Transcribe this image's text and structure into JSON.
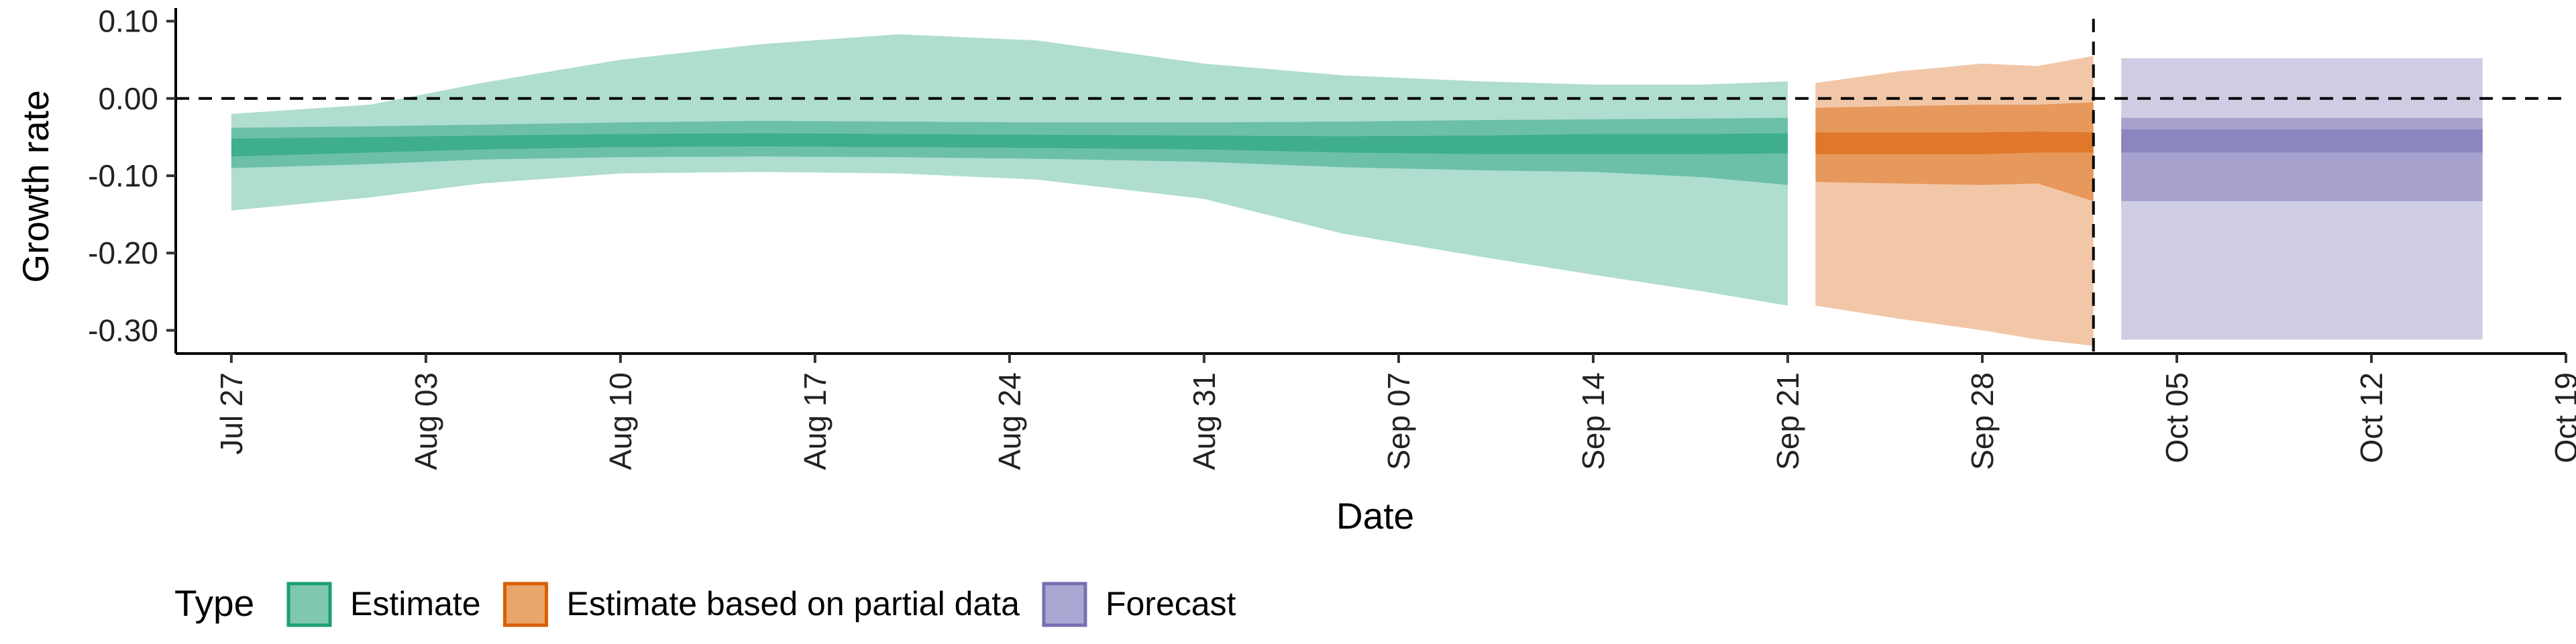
{
  "chart_data": {
    "type": "area",
    "title": "",
    "xlabel": "Date",
    "ylabel": "Growth rate",
    "x_start": "Jul 25",
    "x_end": "Oct 19",
    "xlim": [
      "Jul 25",
      "Oct 19"
    ],
    "ylim": [
      -0.33,
      0.11
    ],
    "x_ticks": [
      "Jul 27",
      "Aug 03",
      "Aug 10",
      "Aug 17",
      "Aug 24",
      "Aug 31",
      "Sep 07",
      "Sep 14",
      "Sep 21",
      "Sep 28",
      "Oct 05",
      "Oct 12",
      "Oct 19"
    ],
    "y_ticks": [
      0.1,
      0.0,
      -0.1,
      -0.2,
      -0.3
    ],
    "y_tick_labels": [
      "0.10",
      "0.00",
      "-0.10",
      "-0.20",
      "-0.30"
    ],
    "hline": 0.0,
    "vline": "Oct 02",
    "legend": {
      "title": "Type",
      "position": "bottom",
      "entries": [
        {
          "label": "Estimate",
          "fill": "#7fc8ae",
          "stroke": "#1b9e77"
        },
        {
          "label": "Estimate based on partial data",
          "fill": "#e9a56a",
          "stroke": "#d95f02"
        },
        {
          "label": "Forecast",
          "fill": "#aaa8d2",
          "stroke": "#7570b3"
        }
      ]
    },
    "series": [
      {
        "name": "Estimate",
        "color": "#1b9e77",
        "x": [
          "Jul 27",
          "Aug 01",
          "Aug 05",
          "Aug 10",
          "Aug 15",
          "Aug 20",
          "Aug 25",
          "Aug 31",
          "Sep 05",
          "Sep 10",
          "Sep 14",
          "Sep 18",
          "Sep 21"
        ],
        "median": [
          -0.064,
          -0.06,
          -0.057,
          -0.055,
          -0.054,
          -0.055,
          -0.056,
          -0.057,
          -0.059,
          -0.06,
          -0.059,
          -0.059,
          -0.058
        ],
        "inner_lower": [
          -0.075,
          -0.07,
          -0.066,
          -0.063,
          -0.062,
          -0.063,
          -0.064,
          -0.066,
          -0.07,
          -0.072,
          -0.072,
          -0.072,
          -0.071
        ],
        "inner_upper": [
          -0.052,
          -0.05,
          -0.048,
          -0.046,
          -0.045,
          -0.046,
          -0.047,
          -0.048,
          -0.049,
          -0.048,
          -0.046,
          -0.046,
          -0.045
        ],
        "mid_lower": [
          -0.09,
          -0.085,
          -0.079,
          -0.076,
          -0.075,
          -0.076,
          -0.078,
          -0.082,
          -0.089,
          -0.093,
          -0.095,
          -0.102,
          -0.112
        ],
        "mid_upper": [
          -0.038,
          -0.036,
          -0.034,
          -0.031,
          -0.029,
          -0.03,
          -0.031,
          -0.031,
          -0.03,
          -0.028,
          -0.027,
          -0.026,
          -0.025
        ],
        "outer_lower": [
          -0.145,
          -0.128,
          -0.11,
          -0.097,
          -0.095,
          -0.097,
          -0.105,
          -0.13,
          -0.175,
          -0.205,
          -0.228,
          -0.25,
          -0.268
        ],
        "outer_upper": [
          -0.02,
          -0.008,
          0.02,
          0.05,
          0.07,
          0.083,
          0.075,
          0.045,
          0.03,
          0.022,
          0.018,
          0.018,
          0.022
        ]
      },
      {
        "name": "Estimate based on partial data",
        "color": "#d95f02",
        "x": [
          "Sep 22",
          "Sep 25",
          "Sep 28",
          "Sep 30",
          "Oct 02"
        ],
        "median": [
          -0.058,
          -0.058,
          -0.058,
          -0.057,
          -0.058
        ],
        "inner_lower": [
          -0.072,
          -0.072,
          -0.072,
          -0.07,
          -0.07
        ],
        "inner_upper": [
          -0.044,
          -0.044,
          -0.044,
          -0.043,
          -0.044
        ],
        "mid_lower": [
          -0.108,
          -0.11,
          -0.112,
          -0.11,
          -0.133
        ],
        "mid_upper": [
          -0.012,
          -0.01,
          -0.008,
          -0.008,
          -0.005
        ],
        "outer_lower": [
          -0.268,
          -0.285,
          -0.3,
          -0.312,
          -0.32
        ],
        "outer_upper": [
          0.02,
          0.035,
          0.045,
          0.042,
          0.055
        ]
      },
      {
        "name": "Forecast",
        "color": "#7570b3",
        "x": [
          "Oct 03",
          "Oct 16"
        ],
        "median": [
          -0.055,
          -0.055
        ],
        "inner_lower": [
          -0.07,
          -0.07
        ],
        "inner_upper": [
          -0.04,
          -0.04
        ],
        "mid_lower": [
          -0.133,
          -0.133
        ],
        "mid_upper": [
          -0.025,
          -0.025
        ],
        "outer_lower": [
          -0.312,
          -0.312
        ],
        "outer_upper": [
          0.052,
          0.052
        ]
      }
    ]
  }
}
